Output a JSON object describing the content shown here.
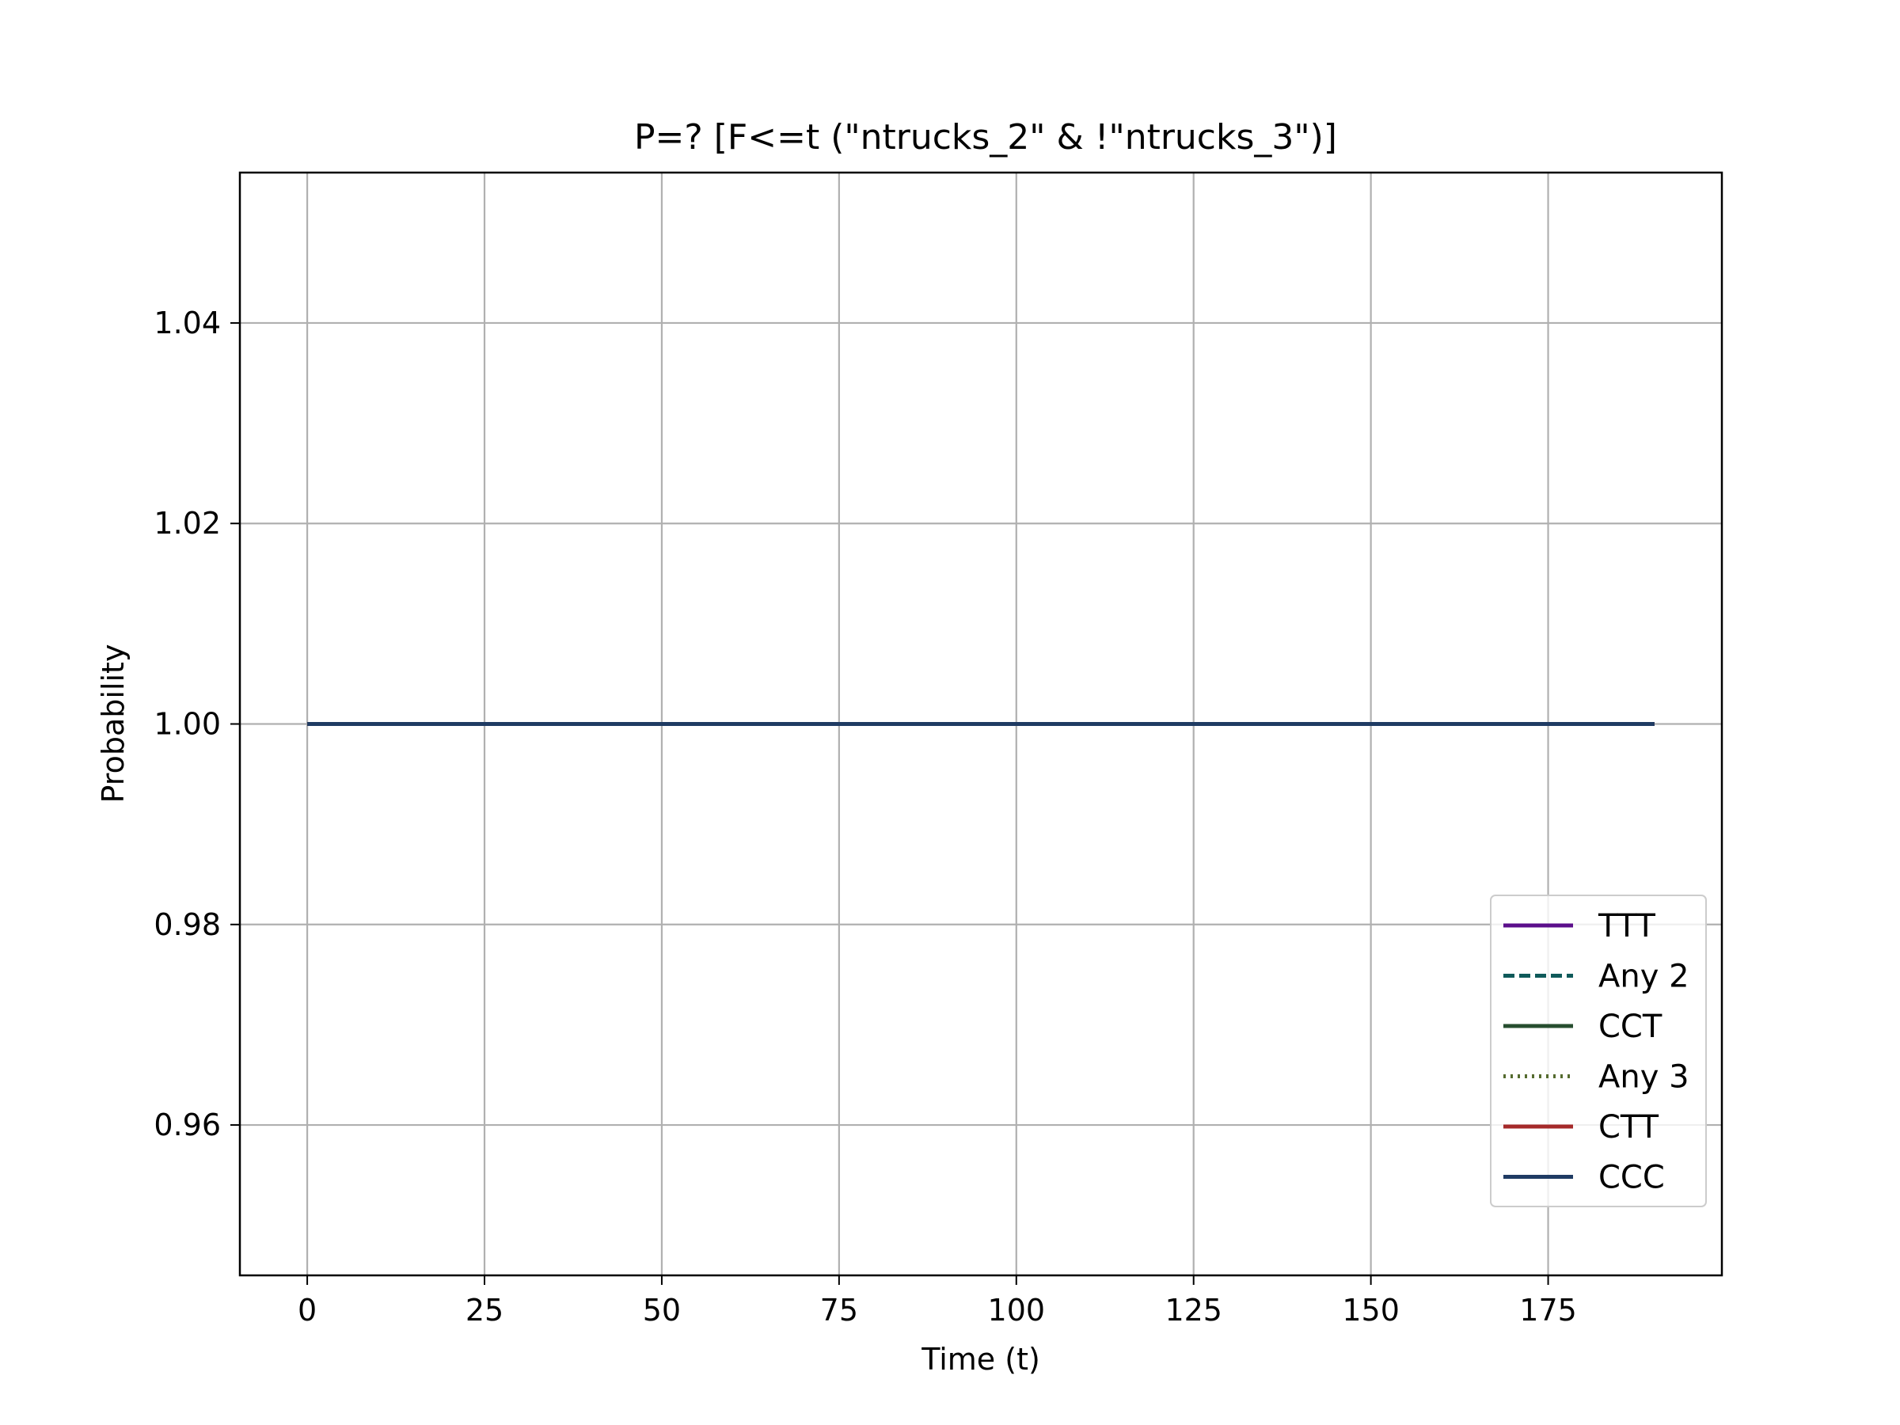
{
  "chart_data": {
    "type": "line",
    "title": "P=? [F<=t (\"ntrucks_2\" & !\"ntrucks_3\")]",
    "xlabel": "Time (t)",
    "ylabel": "Probability",
    "xlim": [
      -9.5,
      199.5
    ],
    "ylim": [
      0.945,
      1.055
    ],
    "xticks": [
      0,
      25,
      50,
      75,
      100,
      125,
      150,
      175
    ],
    "xtick_labels": [
      "0",
      "25",
      "50",
      "75",
      "100",
      "125",
      "150",
      "175"
    ],
    "yticks": [
      0.96,
      0.98,
      1.0,
      1.02,
      1.04
    ],
    "ytick_labels": [
      "0.96",
      "0.98",
      "1.00",
      "1.02",
      "1.04"
    ],
    "grid": true,
    "legend_position": "lower-right",
    "series": [
      {
        "name": "TTT",
        "color": "#5b0f8b",
        "style": "solid",
        "x": [
          0,
          190
        ],
        "y": [
          1.0,
          1.0
        ]
      },
      {
        "name": "Any 2",
        "color": "#0f5a5a",
        "style": "dashed",
        "x": [
          0,
          190
        ],
        "y": [
          1.0,
          1.0
        ]
      },
      {
        "name": "CCT",
        "color": "#274e2f",
        "style": "solid",
        "x": [
          0,
          190
        ],
        "y": [
          1.0,
          1.0
        ]
      },
      {
        "name": "Any 3",
        "color": "#556b2f",
        "style": "dotted",
        "x": [
          0,
          190
        ],
        "y": [
          1.0,
          1.0
        ]
      },
      {
        "name": "CTT",
        "color": "#a52a2a",
        "style": "solid",
        "x": [
          0,
          190
        ],
        "y": [
          1.0,
          1.0
        ]
      },
      {
        "name": "CCC",
        "color": "#1f3b63",
        "style": "solid",
        "x": [
          0,
          190
        ],
        "y": [
          1.0,
          1.0
        ]
      }
    ]
  }
}
